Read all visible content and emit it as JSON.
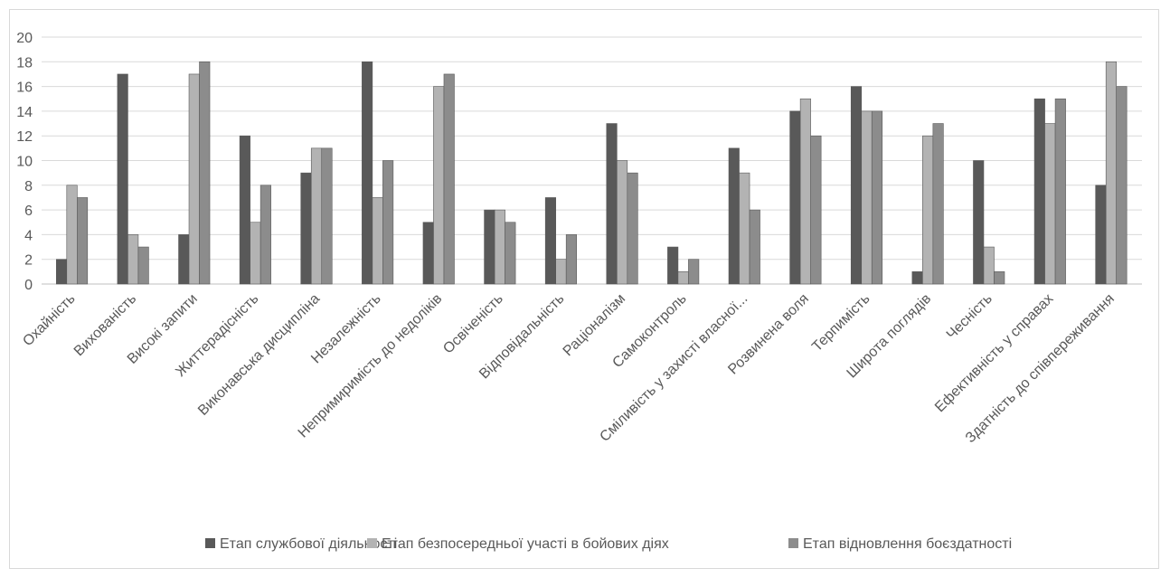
{
  "chart_data": {
    "type": "bar",
    "categories": [
      "Охайність",
      "Вихованість",
      "Високі запити",
      "Життерадісність",
      "Виконавська дисципліна",
      "Незалежність",
      "Непримиримість до недоліків",
      "Освіченість",
      "Відповідальність",
      "Раціоналізм",
      "Самоконтроль",
      "Сміливість у захисті власної...",
      "Розвинена воля",
      "Терпимість",
      "Широта поглядів",
      "Чесність",
      "Ефективність у справах",
      "Здатність до співпереживання"
    ],
    "series": [
      {
        "name": "Етап службової діяльності",
        "color": "#595959",
        "values": [
          2,
          17,
          4,
          12,
          9,
          18,
          5,
          6,
          7,
          13,
          3,
          11,
          14,
          16,
          1,
          10,
          15,
          8
        ]
      },
      {
        "name": "Етап безпосередньої участі в бойових діях",
        "color": "#b3b3b3",
        "values": [
          8,
          4,
          17,
          5,
          11,
          7,
          16,
          6,
          2,
          10,
          1,
          9,
          15,
          14,
          12,
          3,
          13,
          18
        ]
      },
      {
        "name": "Етап відновлення боєздатності",
        "color": "#8c8c8c",
        "values": [
          7,
          3,
          18,
          8,
          11,
          10,
          17,
          5,
          4,
          9,
          2,
          6,
          12,
          14,
          13,
          1,
          15,
          16
        ]
      }
    ],
    "y_ticks": [
      "0",
      "2",
      "4",
      "6",
      "8",
      "10",
      "12",
      "14",
      "16",
      "18",
      "20"
    ],
    "ylim": [
      0,
      20
    ],
    "grid": true,
    "legend_position": "bottom",
    "title": "",
    "xlabel": "",
    "ylabel": ""
  }
}
